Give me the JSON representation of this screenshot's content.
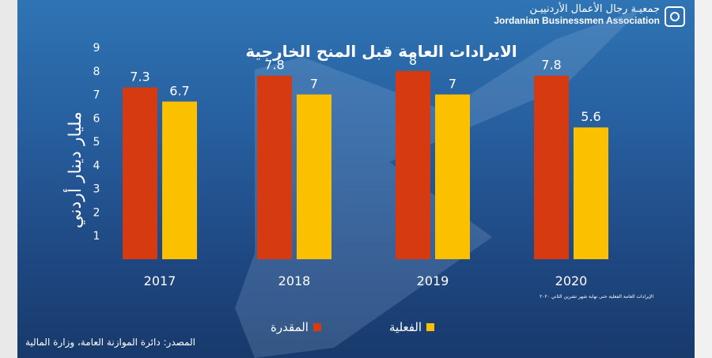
{
  "header": {
    "org_name_ar": "جمعيـة رجال الأعمال الأردنييـن",
    "org_name_en": "Jordanian Businessmen Association"
  },
  "legend": {
    "estimated": "المقدرة",
    "actual": "الفعلية"
  },
  "footnote": "الإيرادات العامة الفعلية حتى نهاية شهر تشرين الثاني ٢٠٢٠",
  "source": "المصدر: دائرة الموازنة العامة، وزارة المالية",
  "colors": {
    "estimated": "#d63a10",
    "actual": "#fbc000",
    "text": "#ffffff"
  },
  "chart_data": {
    "type": "bar",
    "title": "الايرادات العامة قبل المنح الخارجية",
    "ylabel": "مليار دينار أردني",
    "xlabel": "",
    "categories": [
      "2017",
      "2018",
      "2019",
      "2020"
    ],
    "series": [
      {
        "name": "المقدرة",
        "values": [
          7.3,
          7.8,
          8,
          7.8
        ],
        "labels": [
          "7.3",
          "7.8",
          "8",
          "7.8"
        ]
      },
      {
        "name": "الفعلية",
        "values": [
          6.7,
          7,
          7,
          5.6
        ],
        "labels": [
          "6.7",
          "7",
          "7",
          "5.6"
        ]
      }
    ],
    "ylim": [
      0,
      9
    ],
    "yticks": [
      1,
      2,
      3,
      4,
      5,
      6,
      7,
      8,
      9
    ],
    "grid": false,
    "legend_position": "bottom"
  }
}
